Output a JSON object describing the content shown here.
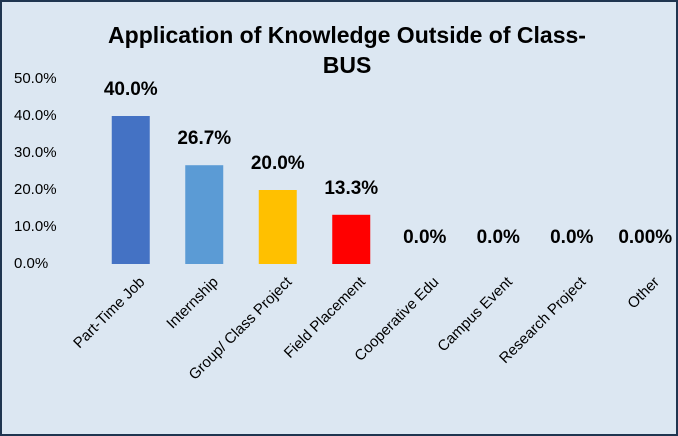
{
  "chart_data": {
    "type": "bar",
    "title": "Application of Knowledge Outside of Class- BUS",
    "categories": [
      "Part-Time Job",
      "Internship",
      "Group/ Class Project",
      "Field Placement",
      "Cooperative Edu",
      "Campus Event",
      "Research Project",
      "Other"
    ],
    "values": [
      40.0,
      26.7,
      20.0,
      13.3,
      0,
      0,
      0,
      0
    ],
    "value_labels": [
      "40.0%",
      "26.7%",
      "20.0%",
      "13.3%",
      "0.0%",
      "0.0%",
      "0.0%",
      "0.00%"
    ],
    "colors": [
      "#4472c4",
      "#5b9bd5",
      "#ffc000",
      "#ff0000",
      "#a5a5a5",
      "#70ad47",
      "#264478",
      "#9e480e"
    ],
    "ylim": [
      0,
      50
    ],
    "yticks": [
      {
        "value": 0,
        "label": "0.0%"
      },
      {
        "value": 10,
        "label": "10.0%"
      },
      {
        "value": 20,
        "label": "20.0%"
      },
      {
        "value": 30,
        "label": "30.0%"
      },
      {
        "value": 40,
        "label": "40.0%"
      },
      {
        "value": 50,
        "label": "50.0%"
      }
    ],
    "grid": false
  }
}
